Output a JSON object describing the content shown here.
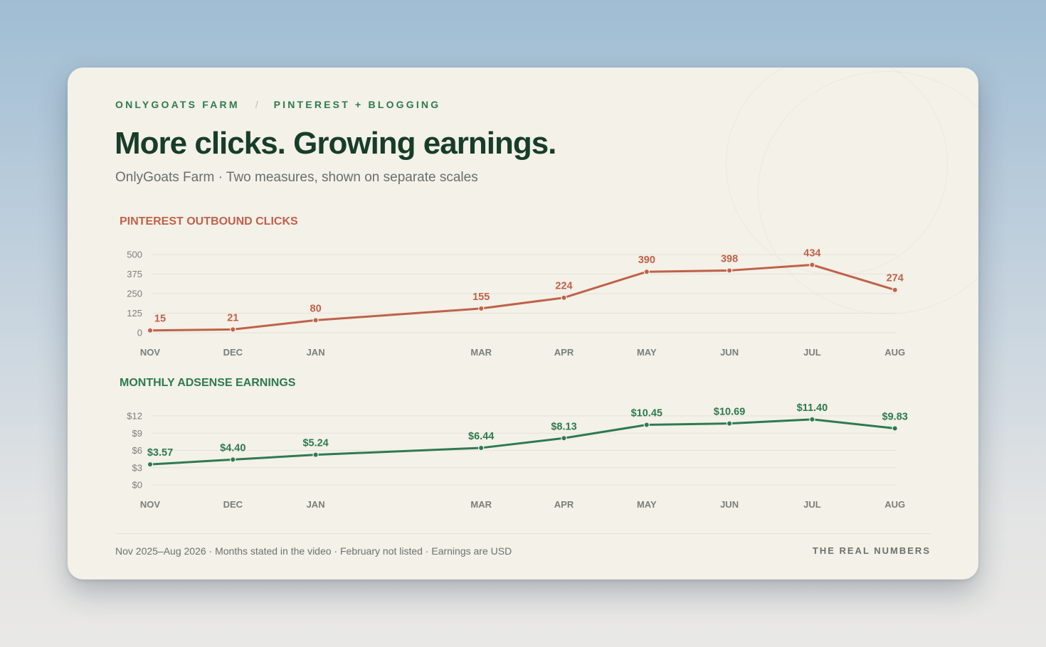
{
  "header": {
    "brand": "ONLYGOATS FARM",
    "separator": "/",
    "topic": "PINTEREST + BLOGGING",
    "title": "More clicks. Growing earnings.",
    "subtitle": "OnlyGoats Farm · Two measures, shown on separate scales"
  },
  "footer": {
    "note": "Nov 2025–Aug 2026 · Months stated in the video · February not listed · Earnings are USD",
    "brand": "THE REAL NUMBERS"
  },
  "colors": {
    "clicks": "#c0614a",
    "earnings": "#2e7a4f",
    "grid": "#e6e3d9",
    "tick": "#7c7e78"
  },
  "chart_data": [
    {
      "type": "line",
      "title": "PINTEREST OUTBOUND CLICKS",
      "categories": [
        "NOV",
        "DEC",
        "JAN",
        "MAR",
        "APR",
        "MAY",
        "JUN",
        "JUL",
        "AUG"
      ],
      "values": [
        15,
        21,
        80,
        155,
        224,
        390,
        398,
        434,
        274
      ],
      "data_labels": [
        "15",
        "21",
        "80",
        "155",
        "224",
        "390",
        "398",
        "434",
        "274"
      ],
      "ylim": [
        0,
        500
      ],
      "y_ticks": [
        0,
        125,
        250,
        375,
        500
      ],
      "y_tick_labels": [
        "0",
        "125",
        "250",
        "375",
        "500"
      ],
      "grid": true
    },
    {
      "type": "line",
      "title": "MONTHLY ADSENSE EARNINGS",
      "categories": [
        "NOV",
        "DEC",
        "JAN",
        "MAR",
        "APR",
        "MAY",
        "JUN",
        "JUL",
        "AUG"
      ],
      "values": [
        3.57,
        4.4,
        5.24,
        6.44,
        8.13,
        10.45,
        10.69,
        11.4,
        9.83
      ],
      "data_labels": [
        "$3.57",
        "$4.40",
        "$5.24",
        "$6.44",
        "$8.13",
        "$10.45",
        "$10.69",
        "$11.40",
        "$9.83"
      ],
      "ylim": [
        0,
        12
      ],
      "y_ticks": [
        0,
        3,
        6,
        9,
        12
      ],
      "y_tick_labels": [
        "$0",
        "$3",
        "$6",
        "$9",
        "$12"
      ],
      "grid": true
    }
  ]
}
